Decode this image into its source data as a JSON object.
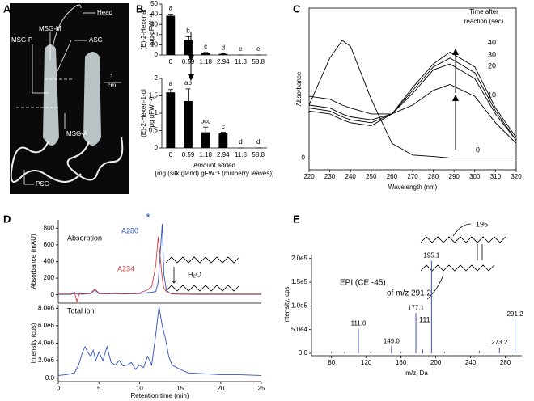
{
  "panels": [
    "A",
    "B",
    "C",
    "D",
    "E"
  ],
  "photo": {
    "labels": [
      "Head",
      "MSG-M",
      "MSG-P",
      "ASG",
      "1",
      "cm",
      "MSG-A",
      "PSG"
    ]
  },
  "chart_data": [
    {
      "type": "bar",
      "ylabel": [
        "(E)-2-Hexenal",
        "(μg gFW⁻¹)"
      ],
      "categories": [
        "0",
        "0.59",
        "1.18",
        "2.94",
        "11.8",
        "58.8"
      ],
      "values": [
        38.5,
        15,
        2,
        1,
        0,
        0
      ],
      "errors": [
        1.5,
        3,
        0.5,
        0.3,
        0,
        0
      ],
      "annotations": [
        "a",
        "b",
        "c",
        "d",
        "e",
        "e"
      ],
      "color": "#000000",
      "ylim": [
        0,
        50
      ],
      "yticks": [
        0,
        10,
        20,
        30,
        40,
        50
      ]
    },
    {
      "type": "bar",
      "ylabel": [
        "(E)-2-Hexen-1-ol",
        "(μg gFW⁻¹)"
      ],
      "xlabel": [
        "Amount added",
        "[mg (silk gland) gFW⁻¹ (mulberry leaves)]"
      ],
      "categories": [
        "0",
        "0.59",
        "1.18",
        "2.94",
        "11.8",
        "58.8"
      ],
      "values": [
        1.6,
        1.35,
        0.45,
        0.42,
        0,
        0
      ],
      "errors": [
        0.08,
        0.35,
        0.15,
        0.03,
        0,
        0
      ],
      "annotations": [
        "a",
        "ab",
        "bcd",
        "c",
        "d",
        "d"
      ],
      "color": "#000000",
      "ylim": [
        0,
        2
      ],
      "yticks": [
        0,
        0.5,
        1,
        1.5,
        2
      ]
    },
    {
      "type": "line",
      "frame": true,
      "ylabel": "Absorbance",
      "xlabel": "Wavelength (nm)",
      "legend_title": [
        "Time after",
        "reaction (sec)"
      ],
      "x": [
        220,
        230,
        236,
        240,
        250,
        260,
        270,
        280,
        288,
        300,
        310,
        320
      ],
      "series": [
        {
          "name": "0",
          "color": "#000000",
          "values": [
            0.18,
            0.34,
            0.4,
            0.38,
            0.2,
            0.05,
            0.01,
            0.005,
            0,
            0,
            0,
            0
          ]
        },
        {
          "name": "10",
          "color": "#000000",
          "values": [
            0.21,
            0.2,
            0.18,
            0.17,
            0.15,
            0.15,
            0.18,
            0.23,
            0.25,
            0.21,
            0.12,
            0.05
          ]
        },
        {
          "name": "20",
          "color": "#000000",
          "values": [
            0.18,
            0.17,
            0.15,
            0.14,
            0.13,
            0.15,
            0.22,
            0.3,
            0.32,
            0.27,
            0.15,
            0.06
          ]
        },
        {
          "name": "30",
          "color": "#000000",
          "values": [
            0.17,
            0.16,
            0.14,
            0.13,
            0.12,
            0.15,
            0.23,
            0.31,
            0.34,
            0.29,
            0.16,
            0.06
          ]
        },
        {
          "name": "40",
          "color": "#000000",
          "values": [
            0.16,
            0.15,
            0.13,
            0.12,
            0.11,
            0.15,
            0.24,
            0.32,
            0.36,
            0.31,
            0.17,
            0.07
          ]
        }
      ],
      "xlim": [
        220,
        320
      ],
      "xticks": [
        220,
        230,
        240,
        250,
        260,
        270,
        280,
        290,
        300,
        310,
        320
      ],
      "ylim": [
        -0.04,
        0.51
      ],
      "yticks": [
        0
      ]
    },
    {
      "type": "line",
      "ylabel": "Absorbance (mAU)",
      "annotations": [
        "Absorption",
        "*",
        "H₂O"
      ],
      "x": [
        0,
        1.5,
        2,
        2.3,
        2.6,
        3,
        4,
        4.5,
        5,
        6,
        7,
        8,
        9,
        10,
        11,
        11.5,
        12,
        12.3,
        12.8,
        13,
        13.3,
        13.7,
        14,
        15,
        17,
        20,
        22,
        25
      ],
      "series": [
        {
          "name": "A280",
          "color": "#3050c0",
          "values": [
            5,
            5,
            15,
            10,
            8,
            8,
            15,
            60,
            15,
            10,
            15,
            10,
            12,
            15,
            25,
            30,
            40,
            150,
            850,
            250,
            60,
            20,
            10,
            8,
            5,
            5,
            5,
            5
          ]
        },
        {
          "name": "A234",
          "color": "#d04040",
          "values": [
            10,
            10,
            30,
            -80,
            20,
            15,
            20,
            70,
            20,
            15,
            20,
            15,
            15,
            20,
            60,
            100,
            350,
            700,
            200,
            80,
            40,
            20,
            15,
            10,
            10,
            10,
            10,
            10
          ]
        }
      ],
      "xlim": [
        0,
        25
      ],
      "ylim": [
        -100,
        900
      ],
      "yticks": [
        0,
        200,
        400,
        600,
        800
      ]
    },
    {
      "type": "line",
      "ylabel": "Intensity (cps)",
      "xlabel": "Retention time (min)",
      "annotations": [
        "Total ion"
      ],
      "x": [
        0,
        1,
        2,
        2.5,
        3,
        3.3,
        3.6,
        4,
        4.3,
        4.6,
        5,
        5.5,
        6,
        6.5,
        7,
        7.5,
        8,
        8.5,
        9,
        9.5,
        10,
        10.5,
        11,
        11.5,
        12,
        12.4,
        12.8,
        13.2,
        13.6,
        14,
        15,
        16,
        18,
        20,
        22,
        25
      ],
      "series": [
        {
          "name": "Total ion",
          "color": "#3050c0",
          "values": [
            300000,
            400000,
            600000,
            1500000,
            3000000,
            3600000,
            3000000,
            2500000,
            3200000,
            2000000,
            3000000,
            2000000,
            3600000,
            1800000,
            1500000,
            2000000,
            1400000,
            1500000,
            1800000,
            1000000,
            1500000,
            1200000,
            2500000,
            1500000,
            5000000,
            8200000,
            6000000,
            4500000,
            2500000,
            1500000,
            1000000,
            600000,
            500000,
            400000,
            400000,
            300000
          ]
        }
      ],
      "xlim": [
        0,
        25
      ],
      "xticks": [
        0,
        5,
        10,
        15,
        20,
        25
      ],
      "ylim": [
        -400000,
        8400000
      ],
      "yticks": [
        {
          "value": 0,
          "label": "0.0"
        },
        {
          "value": 2000000,
          "label": "2.0e6"
        },
        {
          "value": 4000000,
          "label": "4.0e6"
        },
        {
          "value": 6000000,
          "label": "6.0e6"
        },
        {
          "value": 8000000,
          "label": "8.0e6"
        }
      ]
    },
    {
      "type": "stem",
      "title": "EPI (CE -45)",
      "subtitle": "of m/z 291.2",
      "ylabel": "Intensity, cps",
      "xlabel": "m/z, Da",
      "annotations": [
        "195",
        "111"
      ],
      "color": "#4050c0",
      "x": [
        80,
        95,
        111.0,
        125,
        149.0,
        160,
        177.1,
        185,
        195.1,
        210,
        250,
        273.2,
        291.2
      ],
      "values": [
        3000,
        2500,
        52000,
        3000,
        15000,
        4000,
        85000,
        8000,
        195000,
        3000,
        6000,
        12000,
        72000
      ],
      "peak_labels": [
        null,
        null,
        "111.0",
        null,
        "149.0",
        null,
        "177.1",
        null,
        "195.1",
        null,
        null,
        "273.2",
        "291.2"
      ],
      "xlim": [
        57,
        299
      ],
      "xticks": [
        80,
        120,
        160,
        200,
        240,
        280
      ],
      "ylim": [
        -5000,
        208000
      ],
      "yticks": [
        {
          "value": 0,
          "label": "0.0"
        },
        {
          "value": 50000,
          "label": "5.0e4"
        },
        {
          "value": 100000,
          "label": "1.0e5"
        },
        {
          "value": 150000,
          "label": "1.5e5"
        },
        {
          "value": 200000,
          "label": "2.0e5"
        }
      ]
    }
  ]
}
